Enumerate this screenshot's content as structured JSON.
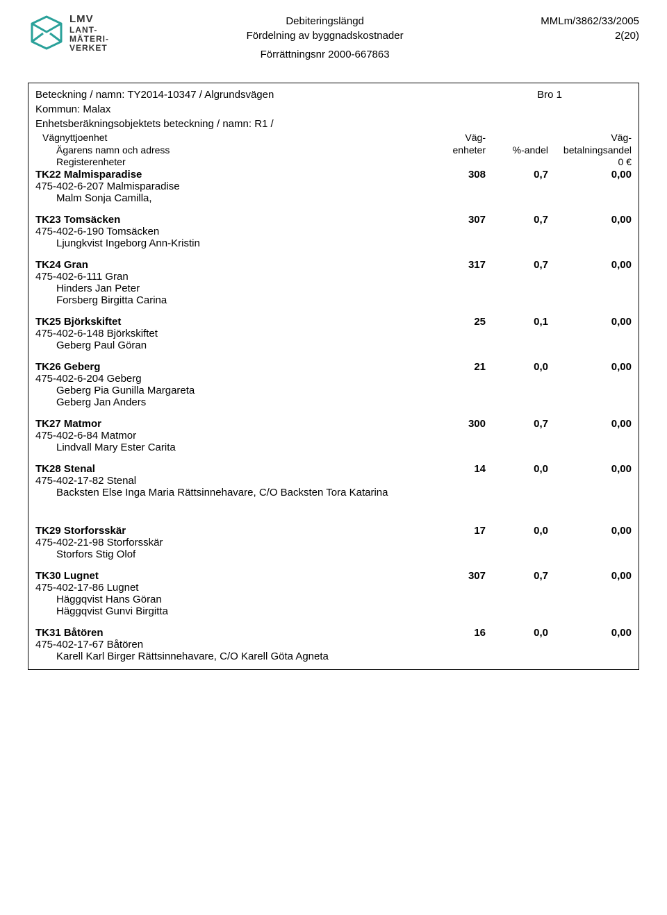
{
  "header": {
    "logo_name_1": "LMV",
    "logo_name_2": "LANT-",
    "logo_name_3": "MÄTERI-",
    "logo_name_4": "VERKET",
    "title_1": "Debiteringslängd",
    "title_2": "Fördelning av byggnadskostnader",
    "forratt": "Förrättningsnr 2000-667863",
    "ref": "MMLm/3862/33/2005",
    "page": "2(20)"
  },
  "meta": {
    "beteckning_label": "Beteckning / namn:",
    "beteckning_value": "TY2014-10347 / Algrundsvägen",
    "bro": "Bro 1",
    "kommun_label": "Kommun:",
    "kommun_value": "Malax",
    "enhet_label": "Enhetsberäkningsobjektets beteckning / namn:",
    "enhet_value": "R1 /",
    "col_left_1": "Vägnyttjoenhet",
    "col_left_2": "Ägarens namn och adress",
    "col_c1_a": "Väg-",
    "col_c1_b": "enheter",
    "col_c2": "%-andel",
    "col_c3_a": "Väg-",
    "col_c3_b": "betalningsandel",
    "reg_label": "Registerenheter",
    "reg_value": "0 €"
  },
  "entries": [
    {
      "code": "TK22 Malmisparadise",
      "c1": "308",
      "c2": "0,7",
      "c3": "0,00",
      "sub": "475-402-6-207 Malmisparadise",
      "owners": [
        "Malm Sonja Camilla,"
      ],
      "tight": true
    },
    {
      "code": "TK23 Tomsäcken",
      "c1": "307",
      "c2": "0,7",
      "c3": "0,00",
      "sub": "475-402-6-190 Tomsäcken",
      "owners": [
        "Ljungkvist Ingeborg Ann-Kristin"
      ]
    },
    {
      "code": "TK24 Gran",
      "c1": "317",
      "c2": "0,7",
      "c3": "0,00",
      "sub": "475-402-6-111 Gran",
      "owners": [
        "Hinders Jan Peter",
        "Forsberg Birgitta Carina"
      ]
    },
    {
      "code": "TK25 Björkskiftet",
      "c1": "25",
      "c2": "0,1",
      "c3": "0,00",
      "sub": "475-402-6-148 Björkskiftet",
      "owners": [
        "Geberg Paul Göran"
      ]
    },
    {
      "code": "TK26 Geberg",
      "c1": "21",
      "c2": "0,0",
      "c3": "0,00",
      "sub": "475-402-6-204 Geberg",
      "owners": [
        "Geberg Pia Gunilla Margareta",
        "Geberg Jan Anders"
      ]
    },
    {
      "code": "TK27 Matmor",
      "c1": "300",
      "c2": "0,7",
      "c3": "0,00",
      "sub": "475-402-6-84 Matmor",
      "owners": [
        "Lindvall Mary Ester Carita"
      ]
    },
    {
      "code": "TK28 Stenal",
      "c1": "14",
      "c2": "0,0",
      "c3": "0,00",
      "sub": "475-402-17-82 Stenal",
      "owners": [
        "Backsten Else Inga Maria Rättsinnehavare, C/O Backsten Tora Katarina"
      ]
    },
    {
      "code": "TK29 Storforsskär",
      "c1": "17",
      "c2": "0,0",
      "c3": "0,00",
      "sub": "475-402-21-98 Storforsskär",
      "owners": [
        "Storfors Stig Olof"
      ],
      "big_gap": true
    },
    {
      "code": "TK30 Lugnet",
      "c1": "307",
      "c2": "0,7",
      "c3": "0,00",
      "sub": "475-402-17-86 Lugnet",
      "owners": [
        "Häggqvist Hans Göran",
        "Häggqvist Gunvi Birgitta"
      ]
    },
    {
      "code": "TK31 Båtören",
      "c1": "16",
      "c2": "0,0",
      "c3": "0,00",
      "sub": "475-402-17-67 Båtören",
      "owners": [
        "Karell Karl Birger Rättsinnehavare, C/O Karell Göta Agneta"
      ]
    }
  ],
  "logo_colors": {
    "stroke": "#2aa19a",
    "text": "#333333"
  }
}
